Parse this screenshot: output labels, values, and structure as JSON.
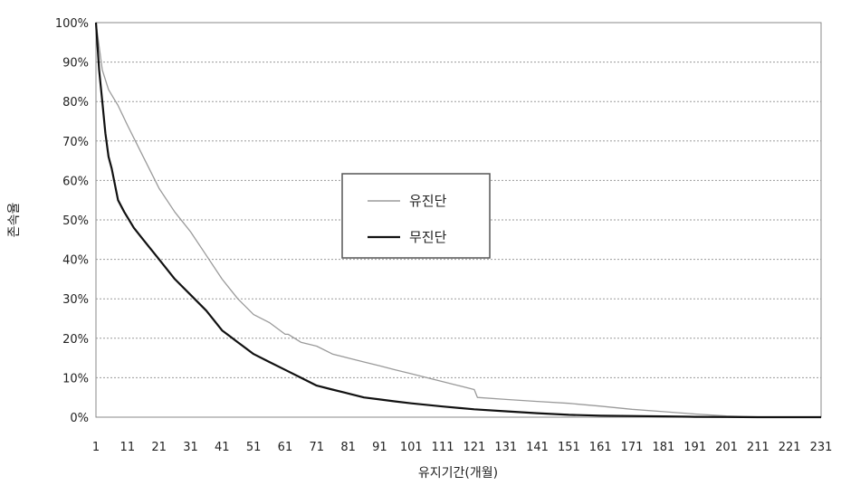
{
  "chart_data": {
    "type": "line",
    "title": "",
    "xlabel": "유지기간(개월)",
    "ylabel": "존속율",
    "xlim": [
      1,
      231
    ],
    "ylim": [
      0,
      100
    ],
    "y_tick_labels": [
      "0%",
      "10%",
      "20%",
      "30%",
      "40%",
      "50%",
      "60%",
      "70%",
      "80%",
      "90%",
      "100%"
    ],
    "x_ticks": [
      1,
      11,
      21,
      31,
      41,
      51,
      61,
      71,
      81,
      91,
      101,
      111,
      121,
      131,
      141,
      151,
      161,
      171,
      181,
      191,
      201,
      211,
      221,
      231
    ],
    "grid": true,
    "legend_position": "center",
    "series": [
      {
        "name": "유진단",
        "color": "#9a9a9a",
        "x": [
          1,
          3,
          5,
          8,
          11,
          16,
          21,
          26,
          31,
          36,
          41,
          46,
          51,
          56,
          61,
          62,
          66,
          71,
          76,
          81,
          86,
          91,
          96,
          101,
          106,
          111,
          116,
          121,
          122,
          131,
          141,
          151,
          161,
          171,
          181,
          191,
          201,
          211,
          221,
          231
        ],
        "y": [
          100,
          88,
          83,
          79,
          74,
          66,
          58,
          52,
          47,
          41,
          35,
          30,
          26,
          24,
          21,
          21,
          19,
          18,
          16,
          15,
          14,
          13,
          12,
          11,
          10,
          9,
          8,
          7,
          5,
          4.5,
          4,
          3.5,
          2.8,
          2,
          1.4,
          0.8,
          0.3,
          0.1,
          0.05,
          0
        ]
      },
      {
        "name": "무진단",
        "color": "#111111",
        "x": [
          1,
          2,
          3,
          4,
          5,
          6,
          8,
          10,
          13,
          16,
          21,
          26,
          31,
          36,
          41,
          46,
          51,
          56,
          61,
          66,
          71,
          76,
          81,
          86,
          91,
          96,
          101,
          111,
          121,
          131,
          141,
          151,
          161,
          171,
          181,
          191,
          201,
          211,
          221,
          231
        ],
        "y": [
          100,
          88,
          80,
          72,
          66,
          63,
          55,
          52,
          48,
          45,
          40,
          35,
          31,
          27,
          22,
          19,
          16,
          14,
          12,
          10,
          8,
          7,
          6,
          5,
          4.5,
          4,
          3.5,
          2.7,
          2,
          1.5,
          1,
          0.6,
          0.4,
          0.3,
          0.2,
          0.1,
          0.05,
          0,
          0,
          0
        ]
      }
    ]
  }
}
